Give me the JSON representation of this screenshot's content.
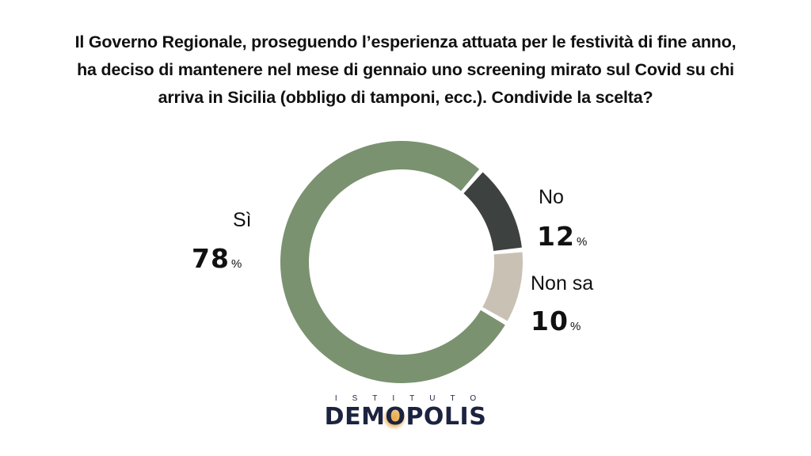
{
  "title_lines": [
    "Il Governo Regionale, proseguendo l’esperienza attuata per le festività di fine anno,",
    "ha deciso di mantenere nel mese di gennaio uno screening mirato sul Covid su chi",
    "arriva in Sicilia (obbligo di tamponi, ecc.). Condivide la scelta?"
  ],
  "chart_data": {
    "type": "pie",
    "donut": true,
    "title": "Il Governo Regionale, proseguendo l’esperienza attuata per le festività di fine anno, ha deciso di mantenere nel mese di gennaio uno screening mirato sul Covid su chi arriva in Sicilia (obbligo di tamponi, ecc.). Condivide la scelta?",
    "categories": [
      "Sì",
      "No",
      "Non sa"
    ],
    "values": [
      78,
      12,
      10
    ],
    "value_labels": [
      "78",
      "12",
      "10"
    ],
    "unit": "%",
    "colors": [
      "#7a9270",
      "#3d4240",
      "#c9c2b4"
    ]
  },
  "logo": {
    "top": "ISTITUTO",
    "main_before": "DEM",
    "main_o": "O",
    "main_after": "POLIS"
  }
}
